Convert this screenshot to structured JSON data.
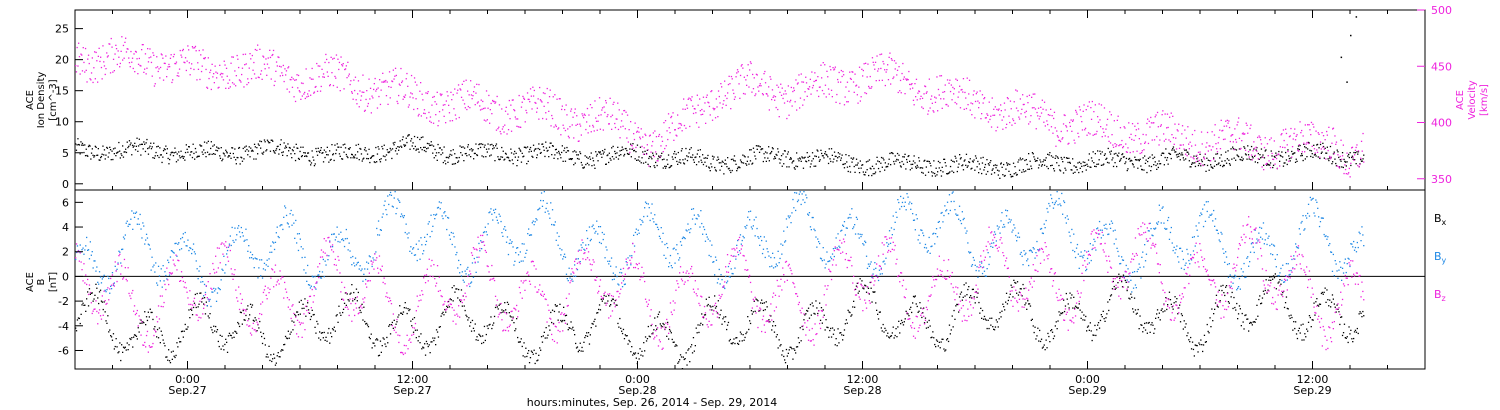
{
  "colors": {
    "axis": "#000000",
    "density": "#000000",
    "velocity": "#ee22dd",
    "bx": "#000000",
    "by": "#1e88e5",
    "bz": "#ee22dd"
  },
  "chart_data": [
    {
      "type": "scatter",
      "panel": "top",
      "left_axis": {
        "label_lines": [
          "ACE",
          "Ion Density",
          "[cm^-3]"
        ],
        "ylim": [
          -1,
          28
        ],
        "ticks": [
          0,
          5,
          10,
          15,
          20,
          25
        ]
      },
      "right_axis": {
        "label_lines": [
          "ACE",
          "Velocity",
          "[km/s]"
        ],
        "ylim": [
          340,
          500
        ],
        "ticks": [
          350,
          400,
          450,
          500
        ],
        "color": "#ee22dd"
      },
      "xlim_hours": [
        -6,
        66
      ],
      "data_span_hours": [
        -6,
        62.7
      ],
      "series": [
        {
          "axis": "left",
          "color": "#000000",
          "trend_x": [
            -6,
            -1,
            1,
            4,
            6,
            8,
            10,
            12,
            14,
            16,
            18,
            20,
            22,
            24,
            26,
            28,
            30,
            32,
            34,
            36,
            38,
            40,
            42,
            44,
            46,
            48,
            50,
            52,
            54,
            56,
            58,
            60,
            62,
            62.7
          ],
          "trend_y": [
            5.6,
            5.4,
            4.9,
            5.6,
            5.3,
            4.6,
            5.5,
            6.1,
            5.3,
            4.8,
            5.2,
            4.6,
            4.4,
            5.1,
            4.2,
            3.6,
            4.1,
            4.6,
            3.9,
            3.4,
            3.2,
            3.2,
            2.9,
            3.0,
            3.5,
            3.6,
            3.8,
            3.9,
            4.1,
            4.4,
            4.6,
            4.9,
            4.6,
            4.3
          ],
          "scatter": 1.4,
          "outliers": [
            [
              61.5,
              20.5
            ],
            [
              61.8,
              16.5
            ],
            [
              62.0,
              24
            ],
            [
              62.3,
              27
            ]
          ]
        },
        {
          "axis": "right",
          "color": "#ee22dd",
          "trend_x": [
            -6,
            -4,
            -1,
            1,
            2,
            4,
            6,
            8,
            10,
            12,
            14,
            16,
            18,
            20,
            22,
            23,
            24,
            25,
            26,
            28,
            30,
            32,
            34,
            36,
            38,
            40,
            42,
            44,
            46,
            48,
            50,
            52,
            54,
            56,
            58,
            60,
            61,
            62,
            62.7
          ],
          "trend_y": [
            460,
            457,
            455,
            443,
            452,
            446,
            442,
            438,
            432,
            422,
            418,
            414,
            412,
            407,
            402,
            396,
            388,
            382,
            393,
            425,
            432,
            427,
            432,
            442,
            437,
            428,
            418,
            410,
            403,
            398,
            393,
            388,
            386,
            383,
            380,
            380,
            390,
            365,
            372
          ],
          "scatter": 16
        }
      ]
    },
    {
      "type": "scatter",
      "panel": "bottom",
      "axis": {
        "label_lines": [
          "ACE",
          "B",
          "[nT]"
        ],
        "ylim": [
          -7.5,
          7
        ],
        "ticks": [
          -6,
          -4,
          -2,
          0,
          2,
          4,
          6
        ]
      },
      "xlim_hours": [
        -6,
        66
      ],
      "x_ticks": [
        {
          "hours": 0,
          "time": "0:00",
          "date": "Sep.27"
        },
        {
          "hours": 12,
          "time": "12:00",
          "date": "Sep.27"
        },
        {
          "hours": 24,
          "time": "0:00",
          "date": "Sep.28"
        },
        {
          "hours": 36,
          "time": "12:00",
          "date": "Sep.28"
        },
        {
          "hours": 48,
          "time": "0:00",
          "date": "Sep.29"
        },
        {
          "hours": 60,
          "time": "12:00",
          "date": "Sep.29"
        }
      ],
      "xlabel": "hours:minutes, Sep. 26, 2014 - Sep. 29, 2014",
      "legend": [
        {
          "base": "B",
          "sub": "x",
          "color": "#000000"
        },
        {
          "base": "B",
          "sub": "y",
          "color": "#1e88e5"
        },
        {
          "base": "B",
          "sub": "z",
          "color": "#ee22dd"
        }
      ],
      "series": [
        {
          "name": "Bx",
          "color": "#000000",
          "trend_x": [
            -6,
            0,
            6,
            12,
            18,
            24,
            30,
            36,
            42,
            48,
            54,
            60,
            62.7
          ],
          "trend_y": [
            -3.5,
            -4.5,
            -4.0,
            -3.5,
            -4.0,
            -4.5,
            -4.2,
            -3.2,
            -3.0,
            -2.8,
            -3.2,
            -2.2,
            -3.0
          ],
          "scatter": 1.8
        },
        {
          "name": "By",
          "color": "#1e88e5",
          "trend_x": [
            -6,
            0,
            6,
            12,
            18,
            24,
            30,
            36,
            42,
            48,
            54,
            60,
            62.7
          ],
          "trend_y": [
            1.5,
            1.5,
            2.0,
            3.5,
            3.0,
            2.5,
            3.0,
            3.5,
            3.5,
            3.0,
            2.5,
            2.5,
            1.5
          ],
          "scatter": 2.2
        },
        {
          "name": "Bz",
          "color": "#ee22dd",
          "trend_x": [
            -6,
            0,
            6,
            12,
            18,
            24,
            30,
            36,
            42,
            48,
            54,
            60,
            62.7
          ],
          "trend_y": [
            -1.0,
            -1.5,
            -1.0,
            -1.5,
            -1.0,
            -1.0,
            -1.5,
            -0.5,
            -0.5,
            0.5,
            0.5,
            -0.5,
            -2.5
          ],
          "scatter": 2.6
        }
      ]
    }
  ]
}
